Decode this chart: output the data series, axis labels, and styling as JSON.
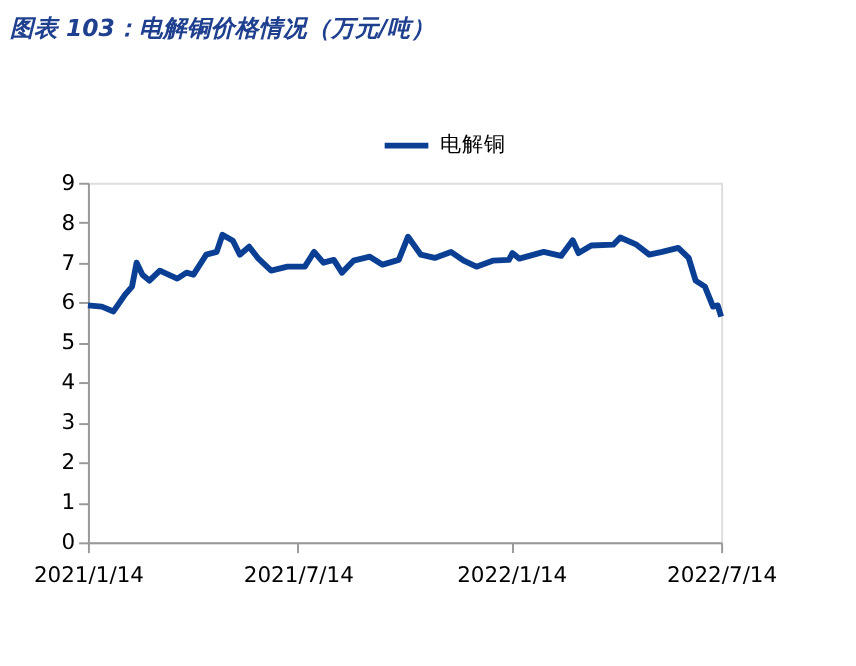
{
  "chart_data": {
    "type": "line",
    "title": "图表 103：电解铜价格情况（万元/吨）",
    "x": [
      "2021-01-14",
      "2021-01-26",
      "2021-02-05",
      "2021-02-15",
      "2021-02-21",
      "2021-02-25",
      "2021-03-02",
      "2021-03-08",
      "2021-03-17",
      "2021-04-01",
      "2021-04-09",
      "2021-04-15",
      "2021-04-26",
      "2021-05-05",
      "2021-05-10",
      "2021-05-19",
      "2021-05-25",
      "2021-06-02",
      "2021-06-10",
      "2021-06-21",
      "2021-07-05",
      "2021-07-20",
      "2021-07-28",
      "2021-08-05",
      "2021-08-14",
      "2021-08-21",
      "2021-08-31",
      "2021-09-14",
      "2021-09-25",
      "2021-10-09",
      "2021-10-17",
      "2021-10-28",
      "2021-11-09",
      "2021-11-23",
      "2021-12-04",
      "2021-12-15",
      "2021-12-29",
      "2022-01-12",
      "2022-01-15",
      "2022-01-21",
      "2022-02-11",
      "2022-02-26",
      "2022-03-08",
      "2022-03-13",
      "2022-03-24",
      "2022-04-12",
      "2022-04-18",
      "2022-05-02",
      "2022-05-13",
      "2022-05-24",
      "2022-06-07",
      "2022-06-16",
      "2022-06-22",
      "2022-06-30",
      "2022-07-07",
      "2022-07-11",
      "2022-07-14"
    ],
    "series": [
      {
        "name": "电解铜",
        "color": "#0b3f94",
        "values": [
          5.93,
          5.9,
          5.78,
          6.2,
          6.4,
          7.0,
          6.7,
          6.55,
          6.8,
          6.6,
          6.75,
          6.7,
          7.2,
          7.27,
          7.7,
          7.55,
          7.2,
          7.4,
          7.1,
          6.8,
          6.9,
          6.9,
          7.27,
          7.0,
          7.07,
          6.75,
          7.05,
          7.15,
          6.95,
          7.07,
          7.65,
          7.2,
          7.12,
          7.27,
          7.05,
          6.9,
          7.05,
          7.07,
          7.24,
          7.1,
          7.27,
          7.17,
          7.56,
          7.24,
          7.43,
          7.45,
          7.63,
          7.45,
          7.2,
          7.27,
          7.37,
          7.12,
          6.55,
          6.4,
          5.9,
          5.93,
          5.65
        ]
      }
    ],
    "xlim": [
      "2021-01-14",
      "2022-07-14"
    ],
    "xticks": [
      {
        "value": "2021-01-14",
        "label": "2021/1/14"
      },
      {
        "value": "2021-07-14",
        "label": "2021/7/14"
      },
      {
        "value": "2022-01-14",
        "label": "2022/1/14"
      },
      {
        "value": "2022-07-14",
        "label": "2022/7/14"
      }
    ],
    "ylim": [
      0,
      9
    ],
    "yticks": [
      0,
      1,
      2,
      3,
      4,
      5,
      6,
      7,
      8,
      9
    ],
    "grid": false,
    "legend": "top",
    "marker": "none",
    "line_style": "solid"
  }
}
